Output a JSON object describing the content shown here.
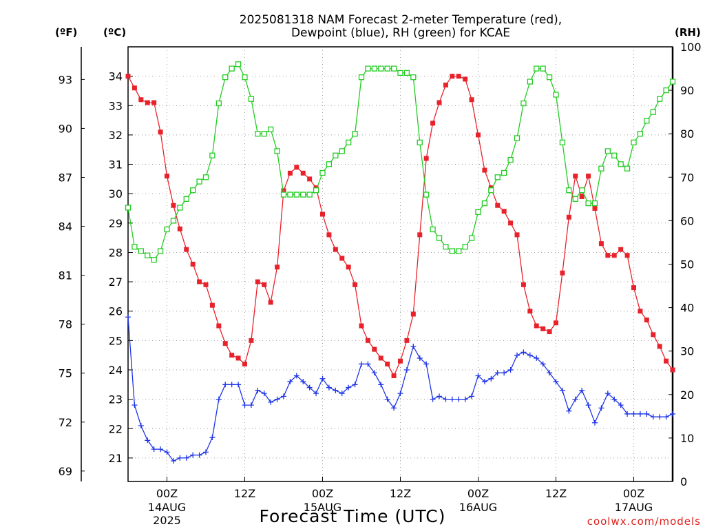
{
  "chart_data": {
    "type": "line",
    "title_lines": [
      "2025081318 NAM Forecast 2-meter Temperature (red),",
      "Dewpoint (blue), RH (green) for KCAE"
    ],
    "xlabel": "Forecast Time (UTC)",
    "credit": "coolwx.com/models",
    "units": {
      "f": "(ºF)",
      "c": "(ºC)",
      "rh": "(RH)"
    },
    "forecast_hours": [
      0,
      84
    ],
    "c_axis": {
      "ylim": [
        20.2,
        35.0
      ],
      "ticks": [
        21,
        22,
        23,
        24,
        25,
        26,
        27,
        28,
        29,
        30,
        31,
        32,
        33,
        34
      ]
    },
    "f_axis": {
      "ticks": [
        69,
        72,
        75,
        78,
        81,
        84,
        87,
        90,
        93
      ]
    },
    "rh_axis": {
      "ylim": [
        0,
        100
      ],
      "ticks": [
        0,
        10,
        20,
        30,
        40,
        50,
        60,
        70,
        80,
        90,
        100
      ]
    },
    "x_ticks": [
      {
        "hour": 6,
        "label": "00Z",
        "sub1": "14AUG",
        "sub2": "2025"
      },
      {
        "hour": 18,
        "label": "12Z",
        "sub1": "",
        "sub2": ""
      },
      {
        "hour": 30,
        "label": "00Z",
        "sub1": "15AUG",
        "sub2": ""
      },
      {
        "hour": 42,
        "label": "12Z",
        "sub1": "",
        "sub2": ""
      },
      {
        "hour": 54,
        "label": "00Z",
        "sub1": "16AUG",
        "sub2": ""
      },
      {
        "hour": 66,
        "label": "12Z",
        "sub1": "",
        "sub2": ""
      },
      {
        "hour": 78,
        "label": "00Z",
        "sub1": "17AUG",
        "sub2": ""
      }
    ],
    "grid": true,
    "series": [
      {
        "name": "Temperature",
        "units": "C",
        "color": "#e8222b",
        "marker": "square-filled",
        "values": [
          34.0,
          33.6,
          33.2,
          33.1,
          33.1,
          32.1,
          30.6,
          29.6,
          28.8,
          28.1,
          27.6,
          27.0,
          26.9,
          26.2,
          25.5,
          24.9,
          24.5,
          24.4,
          24.2,
          25.0,
          27.0,
          26.9,
          26.3,
          27.5,
          30.1,
          30.7,
          30.9,
          30.7,
          30.5,
          30.2,
          29.3,
          28.6,
          28.1,
          27.8,
          27.5,
          26.9,
          25.5,
          25.0,
          24.7,
          24.4,
          24.2,
          23.8,
          24.3,
          25.0,
          25.9,
          28.6,
          31.2,
          32.4,
          33.1,
          33.7,
          34.0,
          34.0,
          33.9,
          33.2,
          32.0,
          30.8,
          30.2,
          29.6,
          29.4,
          29.0,
          28.6,
          26.9,
          26.0,
          25.5,
          25.4,
          25.3,
          25.6,
          27.3,
          29.2,
          30.6,
          29.9,
          30.6,
          29.5,
          28.3,
          27.9,
          27.9,
          28.1,
          27.9,
          26.8,
          26.0,
          25.7,
          25.2,
          24.8,
          24.3,
          24.0
        ]
      },
      {
        "name": "Dewpoint",
        "units": "C",
        "color": "#1f35e6",
        "marker": "plus",
        "values": [
          25.8,
          22.8,
          22.1,
          21.6,
          21.3,
          21.3,
          21.2,
          20.9,
          21.0,
          21.0,
          21.1,
          21.1,
          21.2,
          21.7,
          23.0,
          23.5,
          23.5,
          23.5,
          22.8,
          22.8,
          23.3,
          23.2,
          22.9,
          23.0,
          23.1,
          23.6,
          23.8,
          23.6,
          23.4,
          23.2,
          23.7,
          23.4,
          23.3,
          23.2,
          23.4,
          23.5,
          24.2,
          24.2,
          23.9,
          23.5,
          23.0,
          22.7,
          23.2,
          24.0,
          24.8,
          24.4,
          24.2,
          23.0,
          23.1,
          23.0,
          23.0,
          23.0,
          23.0,
          23.1,
          23.8,
          23.6,
          23.7,
          23.9,
          23.9,
          24.0,
          24.5,
          24.6,
          24.5,
          24.4,
          24.2,
          23.9,
          23.6,
          23.3,
          22.6,
          23.0,
          23.3,
          22.8,
          22.2,
          22.7,
          23.2,
          23.0,
          22.8,
          22.5,
          22.5,
          22.5,
          22.5,
          22.4,
          22.4,
          22.4,
          22.5
        ]
      },
      {
        "name": "RH",
        "units": "%",
        "color": "#22cc22",
        "marker": "square-open",
        "values": [
          63,
          54,
          53,
          52,
          51,
          53,
          58,
          60,
          63,
          65,
          67,
          69,
          70,
          75,
          87,
          93,
          95,
          96,
          93,
          88,
          80,
          80,
          81,
          76,
          66,
          66,
          66,
          66,
          66,
          67,
          71,
          73,
          75,
          76,
          78,
          80,
          93,
          95,
          95,
          95,
          95,
          95,
          94,
          94,
          93,
          78,
          66,
          58,
          56,
          54,
          53,
          53,
          54,
          56,
          62,
          64,
          67,
          70,
          71,
          74,
          79,
          87,
          92,
          95,
          95,
          93,
          89,
          78,
          67,
          65,
          67,
          64,
          64,
          72,
          76,
          75,
          73,
          72,
          78,
          80,
          83,
          85,
          88,
          90,
          92
        ]
      }
    ]
  }
}
